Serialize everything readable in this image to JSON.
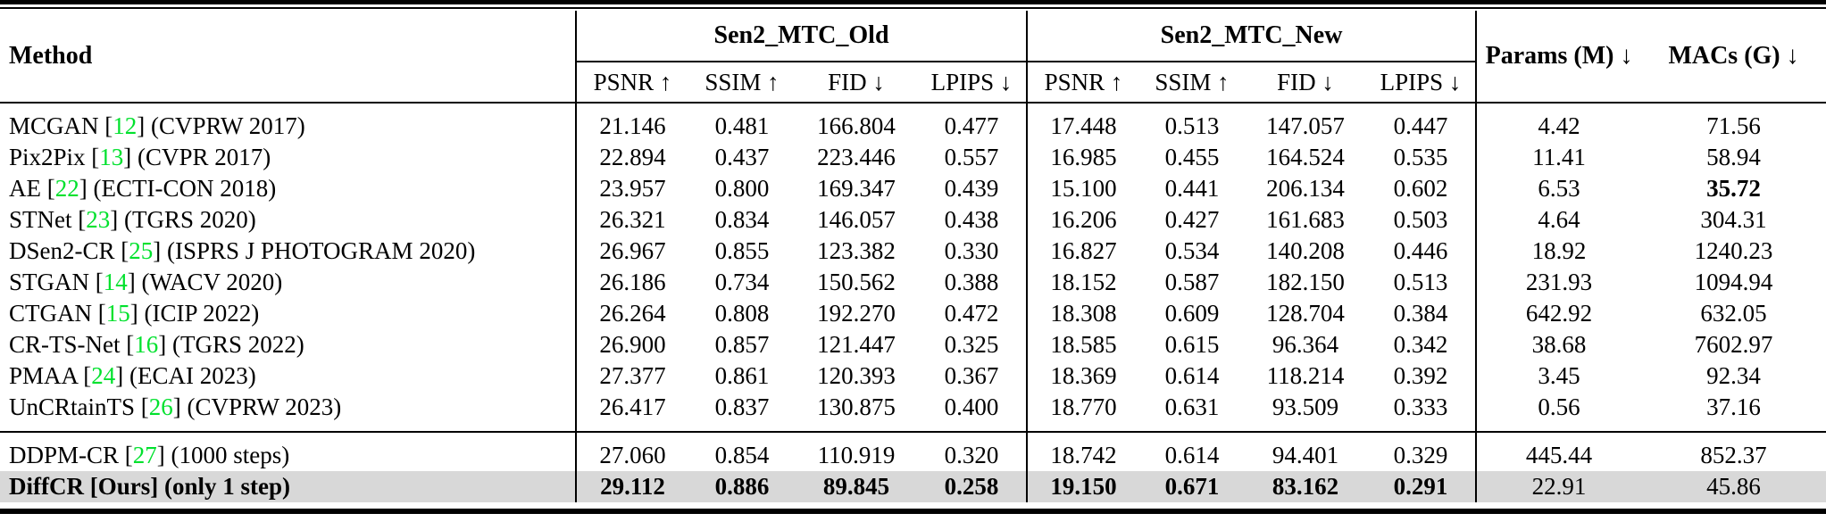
{
  "table": {
    "colors": {
      "citation": "#00E12D",
      "highlight": "#D8D8D8",
      "rule": "#000000"
    },
    "header": {
      "method_label": "Method",
      "groups": [
        {
          "label": "Sen2_MTC_Old",
          "metrics": [
            "PSNR ↑",
            "SSIM ↑",
            "FID ↓",
            "LPIPS ↓"
          ]
        },
        {
          "label": "Sen2_MTC_New",
          "metrics": [
            "PSNR ↑",
            "SSIM ↑",
            "FID ↓",
            "LPIPS ↓"
          ]
        }
      ],
      "params_label": "Params (M) ↓",
      "macs_label": "MACs (G) ↓"
    },
    "rows": [
      {
        "name": "MCGAN",
        "cite": "12",
        "cite_ref": true,
        "venue": "(CVPRW 2017)",
        "old": [
          "21.146",
          "0.481",
          "166.804",
          "0.477"
        ],
        "new": [
          "17.448",
          "0.513",
          "147.057",
          "0.447"
        ],
        "params": "4.42",
        "macs": "71.56"
      },
      {
        "name": "Pix2Pix",
        "cite": "13",
        "cite_ref": true,
        "venue": "(CVPR 2017)",
        "old": [
          "22.894",
          "0.437",
          "223.446",
          "0.557"
        ],
        "new": [
          "16.985",
          "0.455",
          "164.524",
          "0.535"
        ],
        "params": "11.41",
        "macs": "58.94"
      },
      {
        "name": "AE",
        "cite": "22",
        "cite_ref": true,
        "venue": "(ECTI-CON 2018)",
        "old": [
          "23.957",
          "0.800",
          "169.347",
          "0.439"
        ],
        "new": [
          "15.100",
          "0.441",
          "206.134",
          "0.602"
        ],
        "params": "6.53",
        "macs": "35.72",
        "macs_bold": true
      },
      {
        "name": "STNet",
        "cite": "23",
        "cite_ref": true,
        "venue": "(TGRS 2020)",
        "old": [
          "26.321",
          "0.834",
          "146.057",
          "0.438"
        ],
        "new": [
          "16.206",
          "0.427",
          "161.683",
          "0.503"
        ],
        "params": "4.64",
        "macs": "304.31"
      },
      {
        "name": "DSen2-CR",
        "cite": "25",
        "cite_ref": true,
        "venue": "(ISPRS J PHOTOGRAM 2020)",
        "old": [
          "26.967",
          "0.855",
          "123.382",
          "0.330"
        ],
        "new": [
          "16.827",
          "0.534",
          "140.208",
          "0.446"
        ],
        "params": "18.92",
        "macs": "1240.23"
      },
      {
        "name": "STGAN",
        "cite": "14",
        "cite_ref": true,
        "venue": "(WACV 2020)",
        "old": [
          "26.186",
          "0.734",
          "150.562",
          "0.388"
        ],
        "new": [
          "18.152",
          "0.587",
          "182.150",
          "0.513"
        ],
        "params": "231.93",
        "macs": "1094.94"
      },
      {
        "name": "CTGAN",
        "cite": "15",
        "cite_ref": true,
        "venue": "(ICIP 2022)",
        "old": [
          "26.264",
          "0.808",
          "192.270",
          "0.472"
        ],
        "new": [
          "18.308",
          "0.609",
          "128.704",
          "0.384"
        ],
        "params": "642.92",
        "macs": "632.05"
      },
      {
        "name": "CR-TS-Net",
        "cite": "16",
        "cite_ref": true,
        "venue": "(TGRS 2022)",
        "old": [
          "26.900",
          "0.857",
          "121.447",
          "0.325"
        ],
        "new": [
          "18.585",
          "0.615",
          "96.364",
          "0.342"
        ],
        "params": "38.68",
        "macs": "7602.97"
      },
      {
        "name": "PMAA",
        "cite": "24",
        "cite_ref": true,
        "venue": "(ECAI 2023)",
        "old": [
          "27.377",
          "0.861",
          "120.393",
          "0.367"
        ],
        "new": [
          "18.369",
          "0.614",
          "118.214",
          "0.392"
        ],
        "params": "3.45",
        "macs": "92.34"
      },
      {
        "name": "UnCRtainTS",
        "cite": "26",
        "cite_ref": true,
        "venue": "(CVPRW 2023)",
        "old": [
          "26.417",
          "0.837",
          "130.875",
          "0.400"
        ],
        "new": [
          "18.770",
          "0.631",
          "93.509",
          "0.333"
        ],
        "params": "0.56",
        "macs": "37.16",
        "section_end": true
      },
      {
        "name": "DDPM-CR",
        "cite": "27",
        "cite_ref": true,
        "venue": "(1000 steps)",
        "old": [
          "27.060",
          "0.854",
          "110.919",
          "0.320"
        ],
        "new": [
          "18.742",
          "0.614",
          "94.401",
          "0.329"
        ],
        "params": "445.44",
        "macs": "852.37",
        "section_start": true
      },
      {
        "name": "DiffCR",
        "cite": "Ours",
        "cite_ref": false,
        "venue": "(only 1 step)",
        "old": [
          "29.112",
          "0.886",
          "89.845",
          "0.258"
        ],
        "new": [
          "19.150",
          "0.671",
          "83.162",
          "0.291"
        ],
        "params": "22.91",
        "macs": "45.86",
        "highlight": true
      }
    ]
  }
}
